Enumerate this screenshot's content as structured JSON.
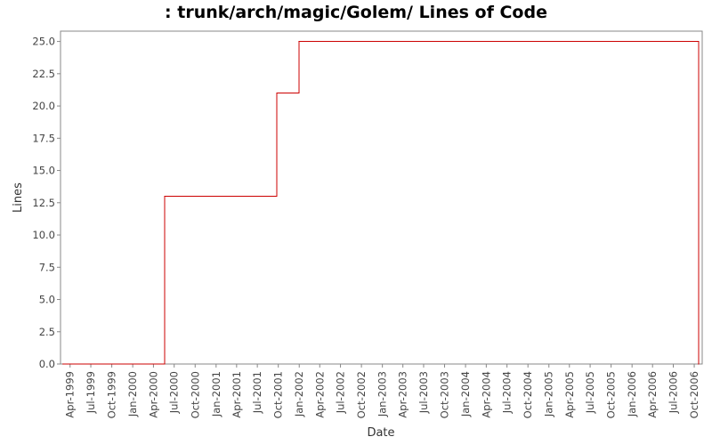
{
  "chart_data": {
    "type": "line",
    "title": ": trunk/arch/magic/Golem/ Lines of Code",
    "xlabel": "Date",
    "ylabel": "Lines",
    "ylim": [
      0,
      25.8
    ],
    "yticks": [
      "0.0",
      "2.5",
      "5.0",
      "7.5",
      "10.0",
      "12.5",
      "15.0",
      "17.5",
      "20.0",
      "22.5",
      "25.0"
    ],
    "xlim": [
      "1999-02-18",
      "2006-11-05"
    ],
    "xticks": [
      {
        "label": "Apr-1999",
        "date": "1999-04-01"
      },
      {
        "label": "Jul-1999",
        "date": "1999-07-01"
      },
      {
        "label": "Oct-1999",
        "date": "1999-10-01"
      },
      {
        "label": "Jan-2000",
        "date": "2000-01-01"
      },
      {
        "label": "Apr-2000",
        "date": "2000-04-01"
      },
      {
        "label": "Jul-2000",
        "date": "2000-07-01"
      },
      {
        "label": "Oct-2000",
        "date": "2000-10-01"
      },
      {
        "label": "Jan-2001",
        "date": "2001-01-01"
      },
      {
        "label": "Apr-2001",
        "date": "2001-04-01"
      },
      {
        "label": "Jul-2001",
        "date": "2001-07-01"
      },
      {
        "label": "Oct-2001",
        "date": "2001-10-01"
      },
      {
        "label": "Jan-2002",
        "date": "2002-01-01"
      },
      {
        "label": "Apr-2002",
        "date": "2002-04-01"
      },
      {
        "label": "Jul-2002",
        "date": "2002-07-01"
      },
      {
        "label": "Oct-2002",
        "date": "2002-10-01"
      },
      {
        "label": "Jan-2003",
        "date": "2003-01-01"
      },
      {
        "label": "Apr-2003",
        "date": "2003-04-01"
      },
      {
        "label": "Jul-2003",
        "date": "2003-07-01"
      },
      {
        "label": "Oct-2003",
        "date": "2003-10-01"
      },
      {
        "label": "Jan-2004",
        "date": "2004-01-01"
      },
      {
        "label": "Apr-2004",
        "date": "2004-04-01"
      },
      {
        "label": "Jul-2004",
        "date": "2004-07-01"
      },
      {
        "label": "Oct-2004",
        "date": "2004-10-01"
      },
      {
        "label": "Jan-2005",
        "date": "2005-01-01"
      },
      {
        "label": "Apr-2005",
        "date": "2005-04-01"
      },
      {
        "label": "Jul-2005",
        "date": "2005-07-01"
      },
      {
        "label": "Oct-2005",
        "date": "2005-10-01"
      },
      {
        "label": "Jan-2006",
        "date": "2006-01-01"
      },
      {
        "label": "Apr-2006",
        "date": "2006-04-01"
      },
      {
        "label": "Jul-2006",
        "date": "2006-07-01"
      },
      {
        "label": "Oct-2006",
        "date": "2006-10-01"
      }
    ],
    "grid": false,
    "series": [
      {
        "color": "#cc0000",
        "step": true,
        "points": [
          {
            "x": "1999-03-01",
            "y": 0
          },
          {
            "x": "2000-05-20",
            "y": 13
          },
          {
            "x": "2001-09-25",
            "y": 21
          },
          {
            "x": "2001-12-31",
            "y": 25
          },
          {
            "x": "2006-10-20",
            "y": 0
          }
        ]
      }
    ]
  }
}
